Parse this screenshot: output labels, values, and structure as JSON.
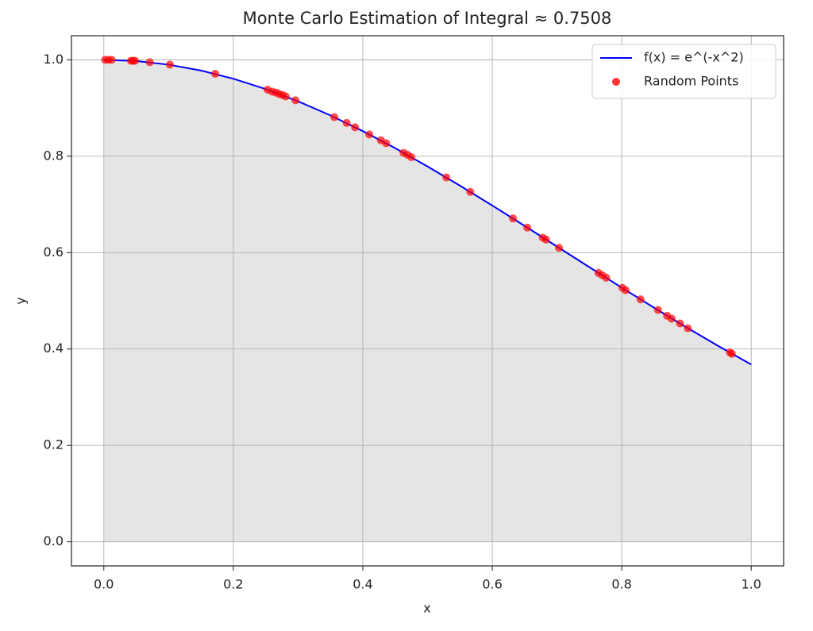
{
  "chart_data": {
    "type": "line",
    "title": "Monte Carlo Estimation of Integral ≈ 0.7508",
    "x_label": "x",
    "y_label": "y",
    "xlim": [
      -0.05,
      1.05
    ],
    "ylim": [
      -0.05,
      1.05
    ],
    "xticks": [
      {
        "value": 0,
        "label": "0.0"
      },
      0.2,
      0.4,
      0.6,
      0.8,
      {
        "value": 1,
        "label": "1.0"
      }
    ],
    "yticks": [
      {
        "value": 0,
        "label": "0.0"
      },
      0.2,
      0.4,
      0.6,
      0.8,
      {
        "value": 1,
        "label": "1.0"
      }
    ],
    "grid": true,
    "legend": "upper right",
    "fill_color": "#e5e5e5",
    "series": [
      {
        "name": "f(x) = e^(-x^2)",
        "type": "line",
        "color": "blue",
        "fill": true,
        "x": [
          0,
          0.05,
          0.1,
          0.15,
          0.2,
          0.25,
          0.3,
          0.35,
          0.4,
          0.45,
          0.5,
          0.55,
          0.6,
          0.65,
          0.7,
          0.75,
          0.8,
          0.85,
          0.9,
          0.95,
          1
        ],
        "values": [
          1,
          0.9975,
          0.99,
          0.9778,
          0.9608,
          0.9394,
          0.9139,
          0.8847,
          0.8521,
          0.8167,
          0.7788,
          0.739,
          0.6977,
          0.6554,
          0.6126,
          0.5698,
          0.5273,
          0.4856,
          0.4449,
          0.4056,
          0.3679
        ]
      },
      {
        "name": "Random Points",
        "type": "scatter",
        "color": "red",
        "x": [
          0.002,
          0.007,
          0.012,
          0.042,
          0.045,
          0.048,
          0.071,
          0.102,
          0.172,
          0.253,
          0.26,
          0.266,
          0.271,
          0.276,
          0.281,
          0.296,
          0.356,
          0.375,
          0.388,
          0.41,
          0.428,
          0.436,
          0.463,
          0.469,
          0.475,
          0.529,
          0.566,
          0.632,
          0.654,
          0.678,
          0.683,
          0.703,
          0.764,
          0.77,
          0.776,
          0.801,
          0.806,
          0.829,
          0.856,
          0.87,
          0.877,
          0.89,
          0.902,
          0.967,
          0.97
        ],
        "values": [
          1,
          1,
          1,
          0.998,
          0.998,
          0.998,
          0.995,
          0.99,
          0.971,
          0.938,
          0.934,
          0.932,
          0.929,
          0.927,
          0.924,
          0.916,
          0.881,
          0.869,
          0.86,
          0.845,
          0.833,
          0.827,
          0.807,
          0.803,
          0.798,
          0.756,
          0.726,
          0.671,
          0.652,
          0.631,
          0.627,
          0.61,
          0.558,
          0.553,
          0.548,
          0.527,
          0.522,
          0.503,
          0.481,
          0.469,
          0.463,
          0.453,
          0.443,
          0.393,
          0.39
        ]
      }
    ]
  }
}
